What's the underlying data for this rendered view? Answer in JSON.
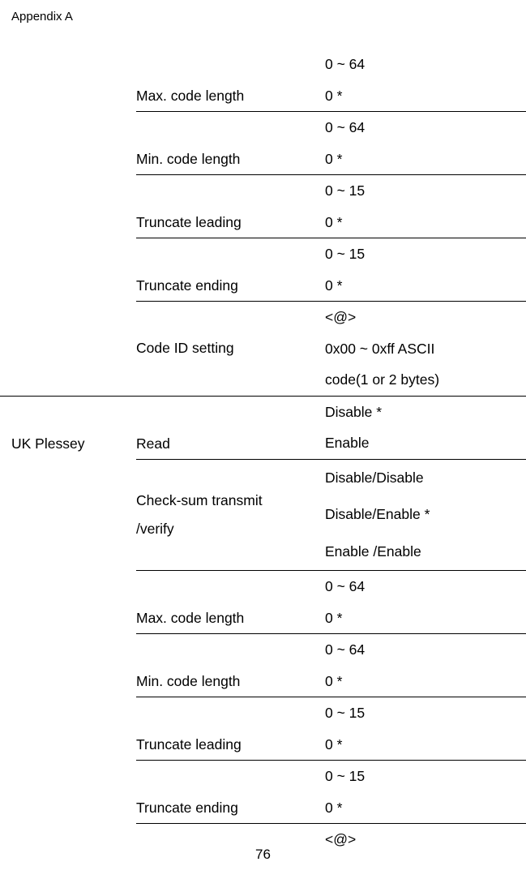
{
  "header": "Appendix A",
  "page_number": "76",
  "section1": {
    "rows": [
      {
        "label": "Max. code length",
        "range": "0 ~ 64",
        "default": "0 *"
      },
      {
        "label": "Min. code length",
        "range": "0 ~ 64",
        "default": "0 *"
      },
      {
        "label": "Truncate leading",
        "range": "0 ~ 15",
        "default": "0 *"
      },
      {
        "label": "Truncate ending",
        "range": "0 ~ 15",
        "default": "0 *"
      }
    ],
    "code_id": {
      "label": "Code ID setting",
      "l1": "<@>",
      "l2": "0x00 ~ 0xff ASCII",
      "l3": "code(1 or 2 bytes)"
    }
  },
  "section2": {
    "group": "UK Plessey",
    "read": {
      "label": "Read",
      "l1": "Disable *",
      "l2": "Enable"
    },
    "checksum": {
      "label_l1": "Check-sum transmit",
      "label_l2": "/verify",
      "v1": "Disable/Disable",
      "v2": "Disable/Enable *",
      "v3": "Enable /Enable"
    },
    "rows": [
      {
        "label": "Max. code length",
        "range": "0 ~ 64",
        "default": "0 *"
      },
      {
        "label": "Min. code length",
        "range": "0 ~ 64",
        "default": "0 *"
      },
      {
        "label": "Truncate leading",
        "range": "0 ~ 15",
        "default": "0 *"
      },
      {
        "label": "Truncate ending",
        "range": "0 ~ 15",
        "default": "0 *"
      }
    ],
    "last": "<@>"
  }
}
